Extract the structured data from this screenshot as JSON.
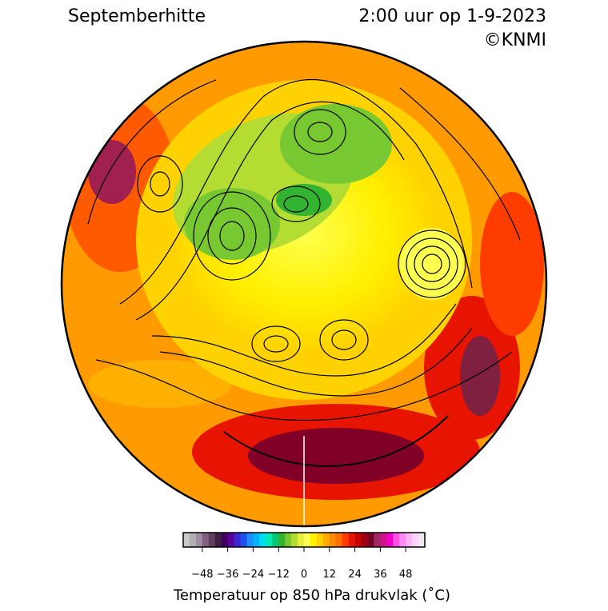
{
  "header": {
    "title": "Septemberhitte",
    "timestamp": "2:00 uur op 1-9-2023",
    "credit": "©KNMI"
  },
  "colorbar": {
    "label": "Temperatuur op 850 hPa drukvlak ($^\\circ$C)",
    "label_text": "Temperatuur op 850 hPa drukvlak (˚C)",
    "lim": [
      -57,
      57
    ],
    "ticks": [
      {
        "value": -48,
        "label": "−48"
      },
      {
        "value": -36,
        "label": "−36"
      },
      {
        "value": -24,
        "label": "−24"
      },
      {
        "value": -12,
        "label": "−12"
      },
      0,
      12,
      24,
      36,
      48
    ],
    "colors": [
      "#c8c8c8",
      "#b0b0b0",
      "#a08ca0",
      "#806080",
      "#604060",
      "#402040",
      "#400060",
      "#5a00a0",
      "#3c28d2",
      "#1e50f0",
      "#1e8cff",
      "#00b4ff",
      "#00dcf0",
      "#00e6b4",
      "#00c878",
      "#32b432",
      "#78c832",
      "#b4dc32",
      "#e6f03c",
      "#ffff50",
      "#fff000",
      "#ffd200",
      "#ffaa00",
      "#ff8c00",
      "#ff6e00",
      "#ff3c00",
      "#e61400",
      "#c80000",
      "#a00014",
      "#780028",
      "#a02864",
      "#d2148c",
      "#f000c8",
      "#ff50e6",
      "#ff8cf0",
      "#ffb4f5",
      "#ffd2fa",
      "#f0e6f0"
    ]
  }
}
